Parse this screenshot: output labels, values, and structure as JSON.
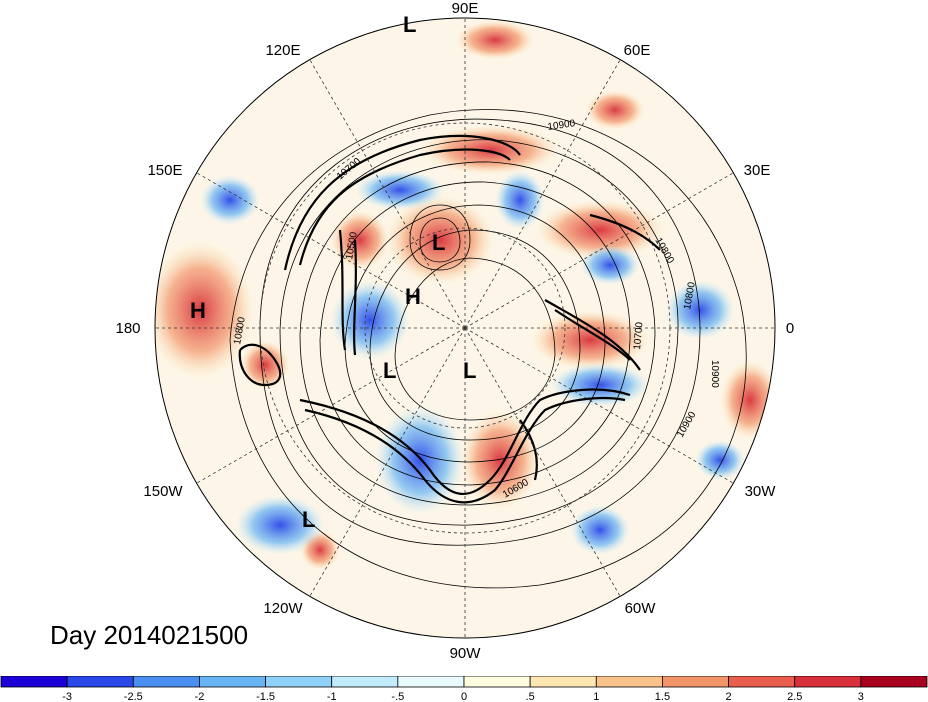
{
  "title": "Day 2014021500",
  "longitude_labels": [
    "90E",
    "60E",
    "30E",
    "0",
    "30W",
    "60W",
    "90W",
    "120W",
    "150W",
    "180",
    "150E",
    "120E"
  ],
  "systems": [
    {
      "label": "L"
    },
    {
      "label": "L"
    },
    {
      "label": "H"
    },
    {
      "label": "H"
    },
    {
      "label": "L"
    },
    {
      "label": "L"
    },
    {
      "label": "L"
    }
  ],
  "contour_labels": [
    "10900",
    "10800",
    "10700",
    "10800",
    "10900",
    "10900",
    "10600",
    "10800",
    "10700",
    "10500",
    "10800",
    "10700"
  ],
  "colorbar": {
    "ticks": [
      "-3",
      "-2.5",
      "-2",
      "-1.5",
      "-1",
      "-.5",
      "0",
      ".5",
      "1",
      "1.5",
      "2",
      "2.5",
      "3"
    ],
    "colors": [
      "#1d00d8",
      "#2a47e8",
      "#4a8ef0",
      "#67b4f4",
      "#8fd1f8",
      "#c2ecfc",
      "#e8fafe",
      "#fffde0",
      "#fde7b2",
      "#f9c28a",
      "#f2966a",
      "#ea5e4d",
      "#d8303a",
      "#a8001e"
    ]
  }
}
